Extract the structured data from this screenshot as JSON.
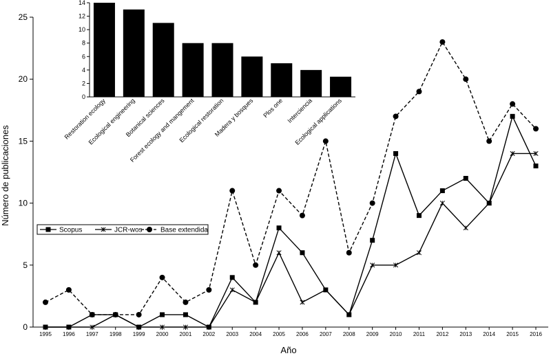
{
  "chart_data": [
    {
      "type": "line",
      "xlabel": "Año",
      "ylabel": "Número de publicaciones",
      "x": [
        "1995",
        "1996",
        "1997",
        "1998",
        "1999",
        "2000",
        "2001",
        "2002",
        "2003",
        "2004",
        "2005",
        "2006",
        "2007",
        "2008",
        "2009",
        "2010",
        "2011",
        "2012",
        "2013",
        "2014",
        "2015",
        "2016"
      ],
      "ylim": [
        0,
        25
      ],
      "yticks": [
        "0",
        "5",
        "10",
        "15",
        "20",
        "25"
      ],
      "grid": false,
      "legend": "left",
      "series": [
        {
          "name": "Scopus",
          "marker": "square",
          "style": "solid",
          "values": [
            0,
            0,
            1,
            1,
            0,
            1,
            1,
            0,
            4,
            2,
            8,
            6,
            3,
            1,
            7,
            14,
            9,
            11,
            12,
            10,
            17,
            13
          ]
        },
        {
          "name": "JCR-wos",
          "marker": "star",
          "style": "solid",
          "values": [
            0,
            0,
            0,
            1,
            0,
            0,
            0,
            0,
            3,
            2,
            6,
            2,
            3,
            1,
            5,
            5,
            6,
            10,
            8,
            10,
            14,
            14
          ]
        },
        {
          "name": "Base extendida",
          "marker": "circle",
          "style": "dashed",
          "values": [
            2,
            3,
            1,
            1,
            1,
            4,
            2,
            3,
            11,
            5,
            11,
            9,
            15,
            6,
            10,
            17,
            19,
            23,
            20,
            15,
            18,
            16
          ]
        }
      ]
    },
    {
      "type": "bar",
      "categories": [
        "Restoration ecology",
        "Ecological engineering",
        "Botanical sciences",
        "Forest ecology and mangement",
        "Ecological restoration",
        "Madera y bosques",
        "Plos one",
        "Interciencia",
        "Ecological applications"
      ],
      "values": [
        14,
        13,
        11,
        8,
        8,
        6,
        5,
        4,
        3
      ],
      "ylim": [
        0,
        14
      ],
      "yticks": [
        "0",
        "2",
        "4",
        "6",
        "8",
        "10",
        "12",
        "14"
      ],
      "bar_color": "#000000"
    }
  ]
}
